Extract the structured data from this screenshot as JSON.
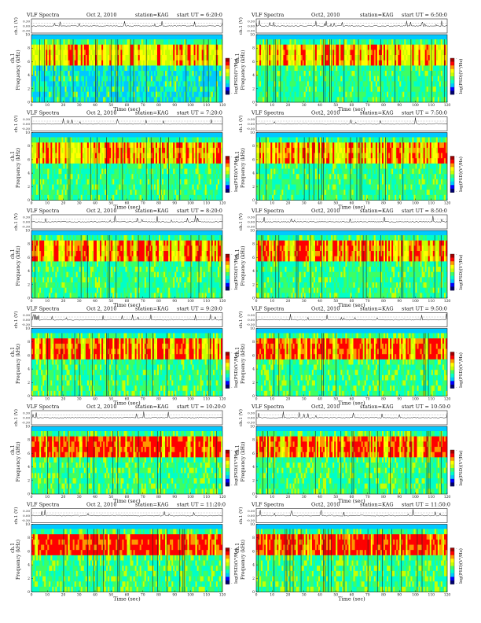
{
  "figure": {
    "panels": [
      {
        "title": "VLF Spectra",
        "date": "Oct 2, 2010",
        "station": "station=KAG",
        "start": "start UT = 6:20:0",
        "ch_label": "ch.1 (V)",
        "freq_label": "ch.1",
        "freq_label2": "Frequency (kHz)",
        "cbar_label": "log(PSD)(V²/Hz)",
        "xlabel": "Time (sec)"
      },
      {
        "title": "VLF Spectra",
        "date": "Oct2, 2010",
        "station": "station=KAG",
        "start": "start UT = 6:50:0",
        "ch_label": "ch.1 (V)",
        "freq_label": "ch.1",
        "freq_label2": "Frequency (kHz)",
        "cbar_label": "log(PSD)(V²/Hz)",
        "xlabel": "Time (sec)"
      },
      {
        "title": "VLF Spectra",
        "date": "Oct 2, 2010",
        "station": "station=KAG",
        "start": "start UT = 7:20:0",
        "ch_label": "ch.1 (V)",
        "freq_label": "ch.1",
        "freq_label2": "Frequency (kHz)",
        "cbar_label": "log(PSD)(V²/Hz)",
        "xlabel": "Time (sec)"
      },
      {
        "title": "VLF Spectra",
        "date": "Oct2, 2010",
        "station": "station=KAG",
        "start": "start UT = 7:50:0",
        "ch_label": "ch.1 (V)",
        "freq_label": "ch.1",
        "freq_label2": "Frequency (kHz)",
        "cbar_label": "log(PSD)(V²/Hz)",
        "xlabel": "Time (sec)"
      },
      {
        "title": "VLF Spectra",
        "date": "Oct 2, 2010",
        "station": "station=KAG",
        "start": "start UT = 8:20:0",
        "ch_label": "ch.1 (V)",
        "freq_label": "ch.1",
        "freq_label2": "Frequency (kHz)",
        "cbar_label": "log(PSD)(V²/Hz)",
        "xlabel": "Time (sec)"
      },
      {
        "title": "VLF Spectra",
        "date": "Oct2, 2010",
        "station": "station=KAG",
        "start": "start UT = 8:50:0",
        "ch_label": "ch.1 (V)",
        "freq_label": "ch.1",
        "freq_label2": "Frequency (kHz)",
        "cbar_label": "log(PSD)(V²/Hz)",
        "xlabel": "Time (sec)"
      },
      {
        "title": "VLF Spectra",
        "date": "Oct 2, 2010",
        "station": "station=KAG",
        "start": "start UT = 9:20:0",
        "ch_label": "ch.1 (V)",
        "freq_label": "ch.1",
        "freq_label2": "Frequency (kHz)",
        "cbar_label": "log(PSD)(V²/Hz)",
        "xlabel": "Time (sec)"
      },
      {
        "title": "VLF Spectra",
        "date": "Oct2, 2010",
        "station": "station=KAG",
        "start": "start UT = 9:50:0",
        "ch_label": "ch.1 (V)",
        "freq_label": "ch.1",
        "freq_label2": "Frequency (kHz)",
        "cbar_label": "log(PSD)(V²/Hz)",
        "xlabel": "Time (sec)"
      },
      {
        "title": "VLF Spectra",
        "date": "Oct 2, 2010",
        "station": "station=KAG",
        "start": "start UT = 10:20:0",
        "ch_label": "ch.1 (V)",
        "freq_label": "ch.1",
        "freq_label2": "Frequency (kHz)",
        "cbar_label": "log(PSD)(V²/Hz)",
        "xlabel": "Time (sec)"
      },
      {
        "title": "VLF Spectra",
        "date": "Oct2, 2010",
        "station": "station=KAG",
        "start": "start UT = 10:50:0",
        "ch_label": "ch.1 (V)",
        "freq_label": "ch.1",
        "freq_label2": "Frequency (kHz)",
        "cbar_label": "log(PSD)(V²/Hz)",
        "xlabel": "Time (sec)"
      },
      {
        "title": "VLF Spectra",
        "date": "Oct 2, 2010",
        "station": "station=KAG",
        "start": "start UT = 11:20:0",
        "ch_label": "ch.1 (V)",
        "freq_label": "ch.1",
        "freq_label2": "Frequency (kHz)",
        "cbar_label": "log(PSD)(V²/Hz)",
        "xlabel": "Time (sec)"
      },
      {
        "title": "VLF Spectra",
        "date": "Oct2, 2010",
        "station": "station=KAG",
        "start": "start UT = 11:50:0",
        "ch_label": "ch.1 (V)",
        "freq_label": "ch.1",
        "freq_label2": "Frequency (kHz)",
        "cbar_label": "log(PSD)(V²/Hz)",
        "xlabel": "Time (sec)"
      }
    ]
  },
  "chart_data": {
    "type": "heatmap",
    "panels_count": 12,
    "x_ticks": [
      0,
      10,
      20,
      30,
      40,
      50,
      60,
      70,
      80,
      90,
      100,
      110,
      120
    ],
    "x_ticks_right": [
      0,
      10,
      20,
      30,
      40,
      50,
      60,
      70,
      80,
      90,
      100,
      110,
      120
    ],
    "xlim": [
      0,
      120
    ],
    "y_ticks": [
      0,
      2,
      4,
      6,
      8,
      10
    ],
    "ylim": [
      0,
      10
    ],
    "v_ticks": [
      "0.30",
      "0.00",
      "-0.30"
    ],
    "vlim": [
      -0.3,
      0.3
    ],
    "colorscale": [
      "#00006e",
      "#0000ff",
      "#00c8ff",
      "#00ffc8",
      "#3cff64",
      "#c8ff00",
      "#ffff00",
      "#ff9600",
      "#ff0000",
      "#a00000"
    ],
    "band_top_khz": 9.3,
    "colorbar_ticks": [
      "-",
      "-"
    ]
  }
}
